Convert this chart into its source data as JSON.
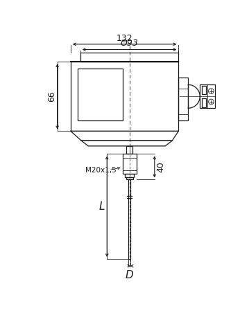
{
  "fig_width": 3.46,
  "fig_height": 4.55,
  "dpi": 100,
  "bg_color": "#ffffff",
  "line_color": "#1a1a1a",
  "lw": 0.9,
  "tlw": 0.6,
  "dim_132": "132",
  "dim_phi93": "Θ93",
  "dim_66": "66",
  "dim_40": "40",
  "dim_M20x15": "M20x1,5",
  "dim_L": "L",
  "dim_D": "D"
}
